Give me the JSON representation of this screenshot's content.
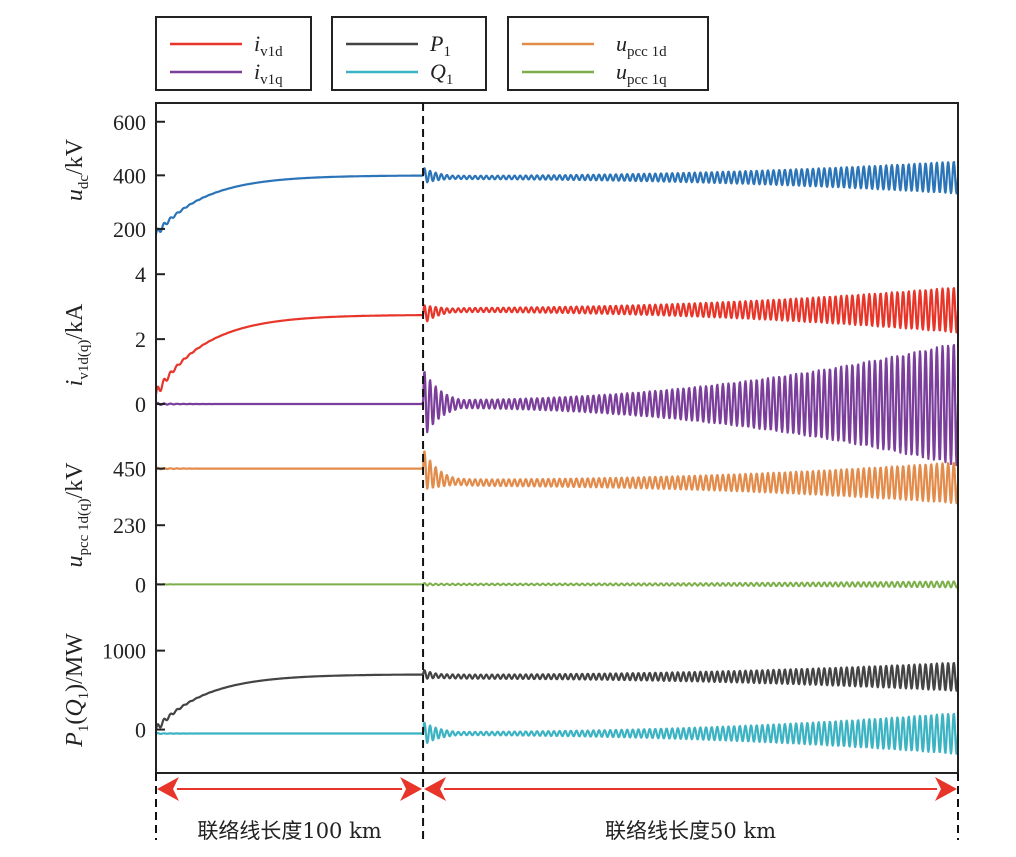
{
  "chart_data": {
    "type": "line",
    "title": "",
    "xlabel": "",
    "x_range": [
      0,
      1
    ],
    "switch_point": 0.333,
    "segments": [
      {
        "label": "联络线长度100 km"
      },
      {
        "label": "联络线长度50 km"
      }
    ],
    "legends": [
      {
        "entries": [
          {
            "key": "iv1d",
            "base": "i",
            "sub": "v1d",
            "color": "#e8352a"
          },
          {
            "key": "iv1q",
            "base": "i",
            "sub": "v1q",
            "color": "#7b3f9b"
          }
        ]
      },
      {
        "entries": [
          {
            "key": "P1",
            "base": "P",
            "sub": "1",
            "color": "#444444"
          },
          {
            "key": "Q1",
            "base": "Q",
            "sub": "1",
            "color": "#3bb3c3"
          }
        ]
      },
      {
        "entries": [
          {
            "key": "upcc1d",
            "base": "u",
            "sub": "pcc 1d",
            "color": "#e38b4a"
          },
          {
            "key": "upcc1q",
            "base": "u",
            "sub": "pcc 1q",
            "color": "#7caf4a"
          }
        ]
      }
    ],
    "panels": [
      {
        "ylabel": {
          "base": "u",
          "sub": "dc",
          "unit": "/kV"
        },
        "ticks": [
          {
            "value": 600,
            "label": "600"
          },
          {
            "value": 400,
            "label": "400"
          },
          {
            "value": 200,
            "label": "200"
          }
        ],
        "ylim": [
          140,
          670
        ],
        "series": [
          {
            "name": "udc",
            "color": "#2b74b8",
            "start": 180,
            "final": 400,
            "post_offset": -8,
            "post_amp0": 30,
            "post_amp_min": 6,
            "post_amp_end": 60,
            "thick": 2.2
          }
        ]
      },
      {
        "ylabel": {
          "base": "i",
          "sub": "v1d(q)",
          "unit": "/kA"
        },
        "ticks": [
          {
            "value": 4,
            "label": "4"
          },
          {
            "value": 2,
            "label": "2"
          },
          {
            "value": 0,
            "label": "0"
          }
        ],
        "ylim": [
          -0.8,
          4.9
        ],
        "series": [
          {
            "name": "iv1d",
            "color": "#e8352a",
            "start": 0.3,
            "final": 2.75,
            "post_offset": 0.15,
            "post_amp0": 0.3,
            "post_amp_min": 0.06,
            "post_amp_end": 0.7,
            "thick": 2.2
          },
          {
            "name": "iv1q",
            "color": "#7b3f9b",
            "start": 0,
            "final": 0,
            "post_offset": 0,
            "post_amp0": 1.1,
            "post_amp_min": 0.12,
            "post_amp_end": 1.9,
            "thick": 2.2
          }
        ]
      },
      {
        "ylabel": {
          "base": "u",
          "sub": "pcc 1d(q)",
          "unit": "/kV"
        },
        "ticks": [
          {
            "value": 450,
            "label": "450"
          },
          {
            "value": 230,
            "label": "230"
          },
          {
            "value": 0,
            "label": "0"
          }
        ],
        "ylim": [
          -150,
          600
        ],
        "series": [
          {
            "name": "upcc1d",
            "color": "#e38b4a",
            "start": 450,
            "final": 450,
            "post_offset": -55,
            "post_amp0": 80,
            "post_amp_min": 12,
            "post_amp_end": 80,
            "thick": 2.2
          },
          {
            "name": "upcc1q",
            "color": "#7caf4a",
            "start": 0,
            "final": 0,
            "post_offset": 0,
            "post_amp0": 6,
            "post_amp_min": 3,
            "post_amp_end": 12,
            "thick": 2
          }
        ]
      },
      {
        "ylabel": {
          "base": "P",
          "sub": "1",
          "paren": "Q",
          "psub": "1",
          "unit": "/MW"
        },
        "ticks": [
          {
            "value": 1000,
            "label": "1000"
          },
          {
            "value": 0,
            "label": "0"
          }
        ],
        "ylim": [
          -550,
          1350
        ],
        "series": [
          {
            "name": "P1",
            "color": "#444444",
            "start": 0,
            "final": 700,
            "post_offset": -30,
            "post_amp0": 60,
            "post_amp_min": 25,
            "post_amp_end": 180,
            "thick": 2.2
          },
          {
            "name": "Q1",
            "color": "#3bb3c3",
            "start": -50,
            "final": -50,
            "post_offset": 0,
            "post_amp0": 150,
            "post_amp_min": 20,
            "post_amp_end": 260,
            "thick": 2.2
          }
        ]
      }
    ]
  }
}
